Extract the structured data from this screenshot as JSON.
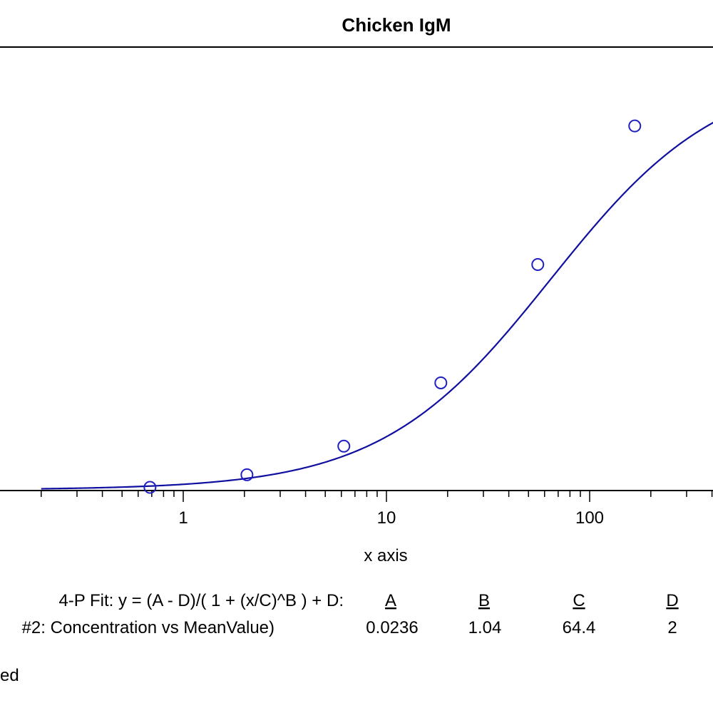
{
  "chart_data": {
    "type": "scatter",
    "title": "Chicken IgM",
    "xlabel": "x axis",
    "ylabel": "",
    "x_scale": "log",
    "xlim": [
      0.2,
      500
    ],
    "ylim": [
      0.02,
      2.1
    ],
    "x_ticks": [
      {
        "value": 1,
        "label": "1"
      },
      {
        "value": 10,
        "label": "10"
      },
      {
        "value": 100,
        "label": "100"
      }
    ],
    "series": [
      {
        "name": "",
        "x": [
          0.686,
          2.058,
          6.17,
          18.52,
          55.56,
          166.7
        ],
        "y": [
          0.035,
          0.094,
          0.228,
          0.525,
          1.08,
          1.73
        ],
        "color": "#2020c0"
      }
    ],
    "fit": {
      "model": "4-P Fit",
      "A": 0.0236,
      "B": 1.04,
      "C": 64.4,
      "D": 2,
      "color": "#1010a0"
    }
  },
  "fit_table": {
    "equation": "4-P Fit:  y = (A - D)/( 1 + (x/C)^B ) + D:",
    "headers": [
      "A",
      "B",
      "C",
      "D"
    ],
    "row_label": "#2: Concentration vs MeanValue)",
    "values": [
      "0.0236",
      "1.04",
      "64.4",
      "2"
    ]
  },
  "footer_text": "ed"
}
